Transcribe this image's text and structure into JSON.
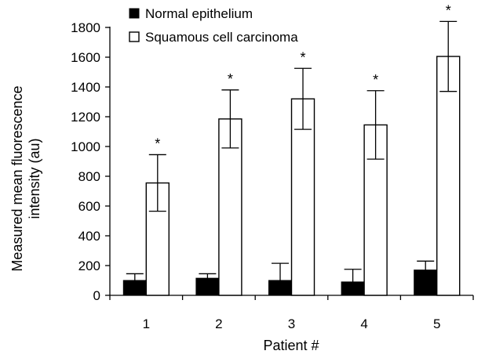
{
  "chart_data": {
    "type": "bar",
    "title": "",
    "xlabel": "Patient #",
    "ylabel_lines": [
      "Measured mean fluorescence",
      "intensity (au)"
    ],
    "ylim": [
      0,
      1800
    ],
    "yticks": [
      0,
      200,
      400,
      600,
      800,
      1000,
      1200,
      1400,
      1600,
      1800
    ],
    "categories": [
      "1",
      "2",
      "3",
      "4",
      "5"
    ],
    "legend_position": "top-left",
    "series": [
      {
        "name": "Normal epithelium",
        "fill": "#000000",
        "values": [
          100,
          115,
          100,
          90,
          170
        ],
        "errors": [
          45,
          30,
          115,
          85,
          60
        ]
      },
      {
        "name": "Squamous cell carcinoma",
        "fill": "#ffffff",
        "values": [
          755,
          1185,
          1320,
          1145,
          1605
        ],
        "errors": [
          190,
          195,
          205,
          230,
          235
        ]
      }
    ],
    "annotations": [
      {
        "category": "1",
        "series": "Squamous cell carcinoma",
        "text": "*"
      },
      {
        "category": "2",
        "series": "Squamous cell carcinoma",
        "text": "*"
      },
      {
        "category": "3",
        "series": "Squamous cell carcinoma",
        "text": "*"
      },
      {
        "category": "4",
        "series": "Squamous cell carcinoma",
        "text": "*"
      },
      {
        "category": "5",
        "series": "Squamous cell carcinoma",
        "text": "*"
      }
    ]
  }
}
